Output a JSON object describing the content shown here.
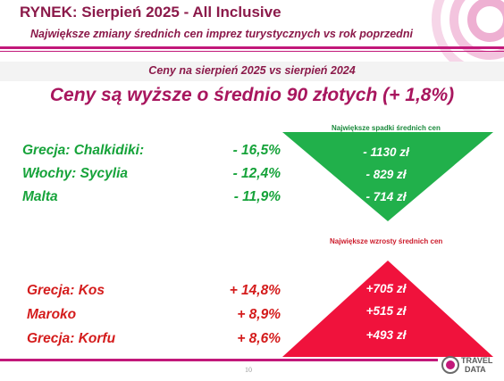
{
  "header": {
    "title": "RYNEK: Sierpień 2025 - All Inclusive",
    "subtitle": "Największe zmiany średnich cen imprez turystycznych vs rok poprzedni"
  },
  "band": {
    "text": "Ceny na sierpień 2025 vs sierpień 2024"
  },
  "headline": "Ceny są wyższe o średnio 90 złotych (+ 1,8%)",
  "decreases": {
    "caption": "Największe spadki średnich cen",
    "color": "#21b04b",
    "rows": [
      {
        "label": "Grecja: Chalkidiki:",
        "pct": "- 16,5%",
        "amount": "- 1130 zł"
      },
      {
        "label": "Włochy: Sycylia",
        "pct": "- 12,4%",
        "amount": "- 829 zł"
      },
      {
        "label": "Malta",
        "pct": "- 11,9%",
        "amount": "- 714 zł"
      }
    ]
  },
  "increases": {
    "caption": "Największe wzrosty średnich cen",
    "color": "#f0123c",
    "rows": [
      {
        "label": "Grecja: Kos",
        "pct": "+ 14,8%",
        "amount": "+705 zł"
      },
      {
        "label": "Maroko",
        "pct": "+  8,9%",
        "amount": "+515 zł"
      },
      {
        "label": "Grecja: Korfu",
        "pct": "+  8,6%",
        "amount": "+493 zł"
      }
    ]
  },
  "footer": {
    "page_number": "10",
    "logo_text_top": "TRAVEL",
    "logo_text_bottom": "DATA"
  },
  "colors": {
    "accent": "#c2187a",
    "title": "#8b1a4a"
  }
}
